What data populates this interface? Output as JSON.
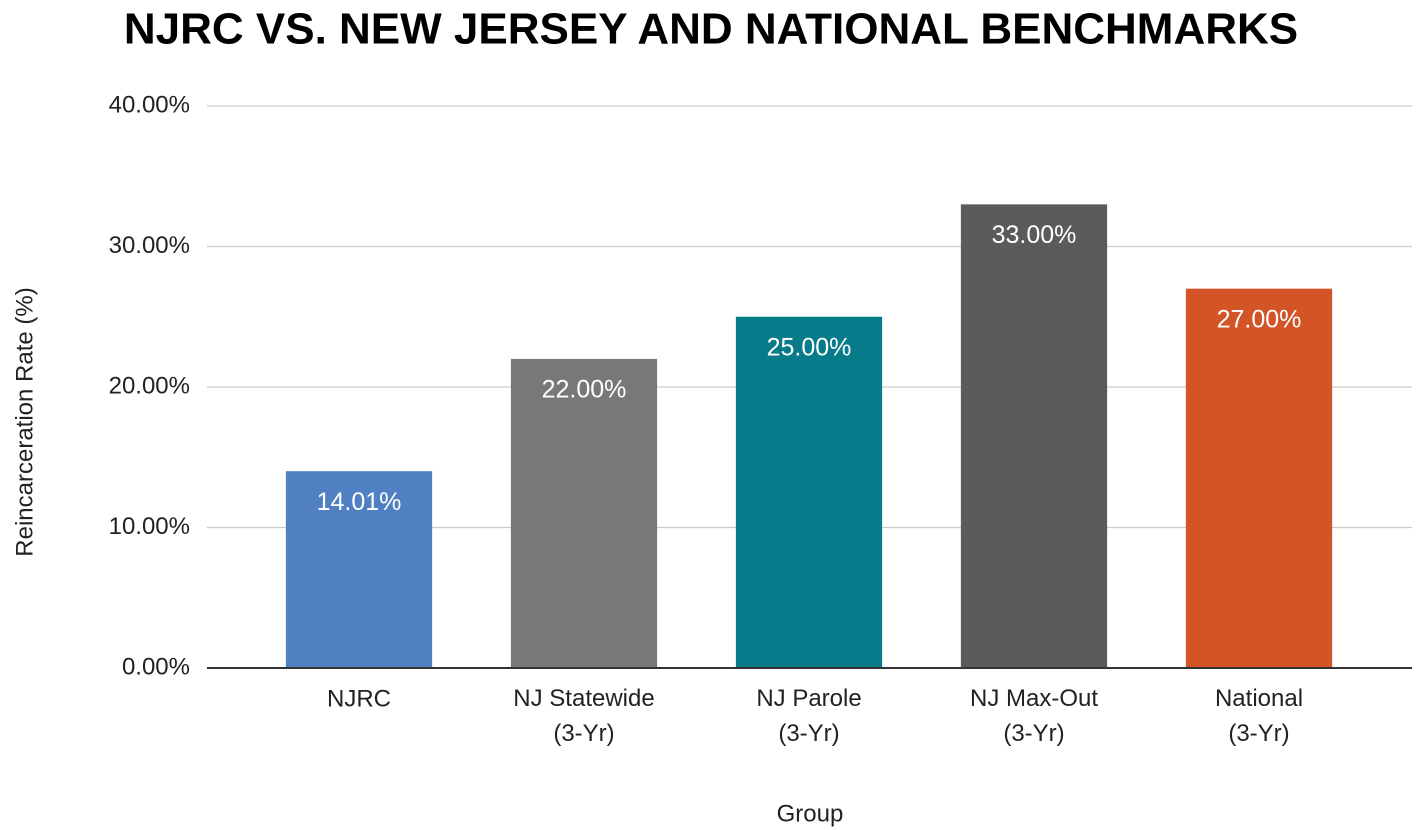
{
  "chart_data": {
    "type": "bar",
    "title": "NJRC VS. NEW JERSEY AND NATIONAL BENCHMARKS",
    "x_label": "Group",
    "y_label": "Reincarceration Rate (%)",
    "categories": [
      "NJRC",
      "NJ Statewide (3-Yr)",
      "NJ Parole (3-Yr)",
      "NJ Max-Out (3-Yr)",
      "National (3-Yr)"
    ],
    "values": [
      14.01,
      22,
      25,
      33,
      27
    ],
    "value_labels": [
      "14.01%",
      "22.00%",
      "25.00%",
      "33.00%",
      "27.00%"
    ],
    "colors": [
      "#5080c1",
      "#787878",
      "#077b8a",
      "#5b5b5b",
      "#d35427"
    ],
    "ylim": [
      0,
      40
    ],
    "yticks": [
      {
        "value": 0,
        "label": "0.00%"
      },
      {
        "value": 10,
        "label": "10.00%"
      },
      {
        "value": 20,
        "label": "20.00%"
      },
      {
        "value": 30,
        "label": "30.00%"
      },
      {
        "value": 40,
        "label": "40.00%"
      }
    ],
    "grid": true
  }
}
